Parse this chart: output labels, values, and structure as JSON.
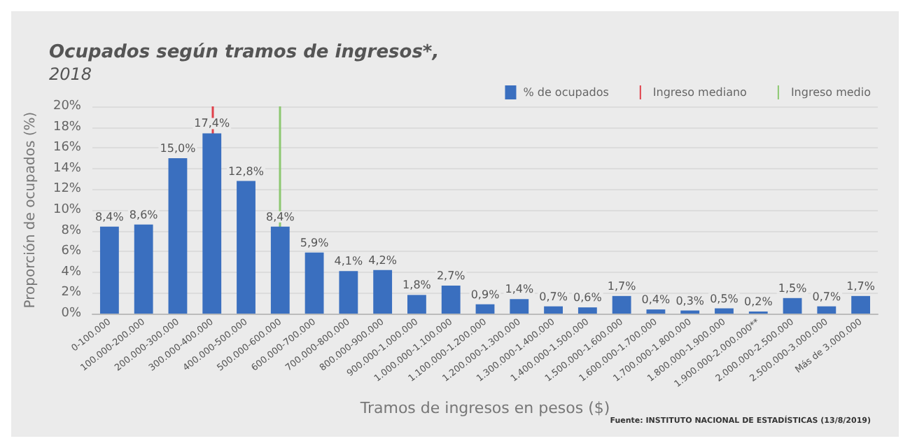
{
  "chart_data": {
    "type": "bar",
    "title": "Ocupados según tramos de ingresos*,",
    "subtitle": "2018",
    "xlabel": "Tramos de ingresos en pesos ($)",
    "ylabel": "Proporción de ocupados (%)",
    "categories": [
      "0-100.000",
      "100.000-200.000",
      "200.000-300.000",
      "300.000-400.000",
      "400.000-500.000",
      "500.000-600.000",
      "600.000-700.000",
      "700.000-800.000",
      "800.000-900.000",
      "900.000-1.000.000",
      "1.000.000-1.100.000",
      "1.100.000-1.200.000",
      "1.200.000-1.300.000",
      "1.300.000-1.400.000",
      "1.400.000-1.500.000",
      "1.500.000-1.600.000",
      "1.600.000-1.700.000",
      "1.700.000-1.800.000",
      "1.800.000-1.900.000",
      "1.900.000-2.000.000**",
      "2.000.000-2.500.000",
      "2.500.000-3.000.000",
      "Más de 3.000.000"
    ],
    "series": [
      {
        "name": "% de ocupados",
        "color": "#3a6fbf",
        "values": [
          8.4,
          8.6,
          15.0,
          17.4,
          12.8,
          8.4,
          5.9,
          4.1,
          4.2,
          1.8,
          2.7,
          0.9,
          1.4,
          0.7,
          0.6,
          1.7,
          0.4,
          0.3,
          0.5,
          0.2,
          1.5,
          0.7,
          1.7
        ],
        "value_labels": [
          "8,4%",
          "8,6%",
          "15,0%",
          "17,4%",
          "12,8%",
          "8,4%",
          "5,9%",
          "4,1%",
          "4,2%",
          "1,8%",
          "2,7%",
          "0,9%",
          "1,4%",
          "0,7%",
          "0,6%",
          "1,7%",
          "0,4%",
          "0,3%",
          "0,5%",
          "0,2%",
          "1,5%",
          "0,7%",
          "1,7%"
        ]
      }
    ],
    "ylim": [
      0,
      20
    ],
    "yticks": [
      {
        "value": 0,
        "label": "0%"
      },
      {
        "value": 2,
        "label": "2%"
      },
      {
        "value": 4,
        "label": "4%"
      },
      {
        "value": 6,
        "label": "6%"
      },
      {
        "value": 8,
        "label": "8%"
      },
      {
        "value": 10,
        "label": "10%"
      },
      {
        "value": 12,
        "label": "12%"
      },
      {
        "value": 14,
        "label": "14%"
      },
      {
        "value": 16,
        "label": "16%"
      },
      {
        "value": 18,
        "label": "18%"
      },
      {
        "value": 20,
        "label": "20%"
      }
    ],
    "ref_lines": [
      {
        "axis": "x",
        "value": "300.000-400.000",
        "label": "Ingreso mediano",
        "color": "#e0404a"
      },
      {
        "axis": "x",
        "value": "500.000-600.000",
        "label": "Ingreso medio",
        "color": "#8cc870"
      }
    ],
    "grid": "y",
    "legend": "top right",
    "annotations": [
      "Fuente: INSTITUTO NACIONAL DE ESTADÍSTICAS (13/8/2019)"
    ]
  }
}
